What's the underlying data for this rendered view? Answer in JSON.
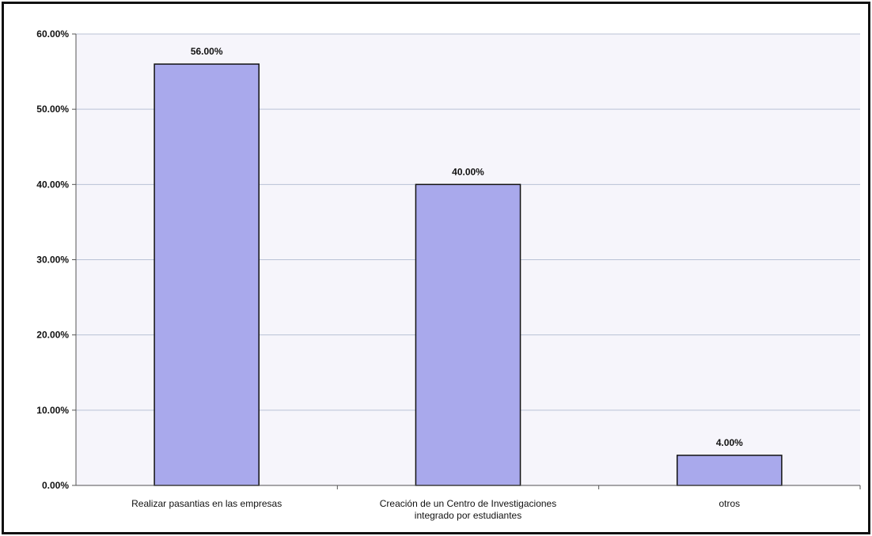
{
  "chart_data": {
    "type": "bar",
    "categories": [
      [
        "Realizar pasantias en las empresas"
      ],
      [
        "Creación de un Centro de Investigaciones",
        "integrado por estudiantes"
      ],
      [
        "otros"
      ]
    ],
    "values": [
      56.0,
      40.0,
      4.0
    ],
    "data_labels": [
      "56.00%",
      "40.00%",
      "4.00%"
    ],
    "y_ticks": [
      0,
      10,
      20,
      30,
      40,
      50,
      60
    ],
    "y_tick_labels": [
      "0.00%",
      "10.00%",
      "20.00%",
      "30.00%",
      "40.00%",
      "50.00%",
      "60.00%"
    ],
    "ylim": [
      0,
      60
    ],
    "grid": true,
    "legend": "none",
    "colors": {
      "bar_fill": "#a9a9ec",
      "bar_stroke": "#111111",
      "grid": "#b9c2d6",
      "axis": "#555555"
    }
  }
}
